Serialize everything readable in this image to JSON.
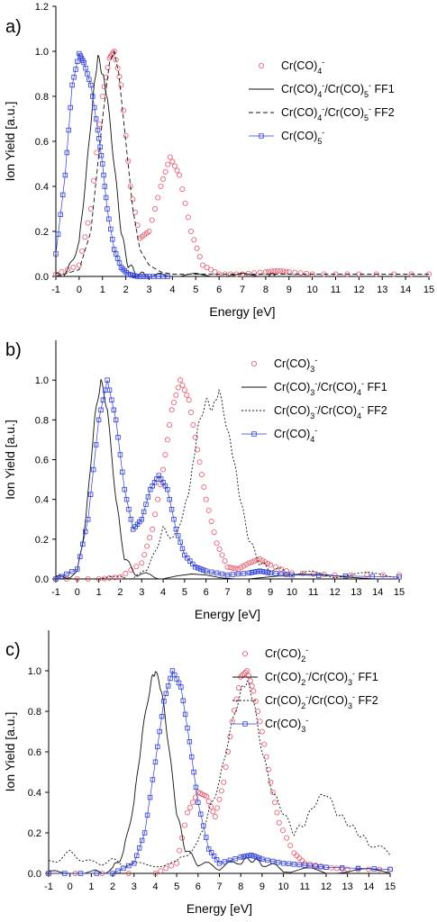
{
  "colors": {
    "red": "#e8556a",
    "blue": "#2b3bd8",
    "black": "#111111"
  },
  "chart_data": [
    {
      "type": "line",
      "panel_label": "a)",
      "xlabel": "Energy [eV]",
      "ylabel": "Ion Yield [a.u.]",
      "xlim": [
        -1,
        15
      ],
      "ylim": [
        0,
        1.2
      ],
      "xticks": [
        "-1",
        "0",
        "1",
        "2",
        "3",
        "4",
        "5",
        "6",
        "7",
        "8",
        "9",
        "10",
        "11",
        "12",
        "13",
        "14",
        "15"
      ],
      "yticks": [
        "0.0",
        "0.2",
        "0.4",
        "0.6",
        "0.8",
        "1.0",
        "1.2"
      ],
      "legend": [
        {
          "base": "Cr(CO)",
          "sub": "4",
          "sup": "-",
          "rest": "",
          "style": "circle-red"
        },
        {
          "base": "Cr(CO)",
          "sub": "4",
          "sup": "-",
          "mid": "/Cr(CO)",
          "sub2": "5",
          "sup2": "-",
          "rest": " FF1",
          "style": "solid-black"
        },
        {
          "base": "Cr(CO)",
          "sub": "4",
          "sup": "-",
          "mid": "/Cr(CO)",
          "sub2": "5",
          "sup2": "-",
          "rest": " FF2",
          "style": "dash-black"
        },
        {
          "base": "Cr(CO)",
          "sub": "5",
          "sup": "-",
          "rest": "",
          "style": "square-blue"
        }
      ],
      "series": [
        {
          "name": "Cr(CO)4-",
          "style": "circle-red",
          "x": [
            -1,
            0,
            0.5,
            1,
            1.3,
            1.5,
            1.8,
            2.2,
            2.6,
            3,
            3.5,
            3.9,
            4.3,
            4.8,
            5.3,
            6,
            7,
            8,
            8.5,
            9,
            10,
            12,
            15
          ],
          "y": [
            0.01,
            0.05,
            0.3,
            0.8,
            0.97,
            1.0,
            0.85,
            0.4,
            0.17,
            0.2,
            0.4,
            0.53,
            0.45,
            0.2,
            0.05,
            0.01,
            0.01,
            0.02,
            0.025,
            0.02,
            0.01,
            0.01,
            0.01
          ]
        },
        {
          "name": "FF1",
          "style": "solid-black",
          "x": [
            -1,
            -0.5,
            0,
            0.3,
            0.6,
            0.8,
            1,
            1.2,
            1.5,
            1.8,
            2.1,
            2.5,
            3,
            4,
            6,
            8,
            8.5
          ],
          "y": [
            0.0,
            0.02,
            0.15,
            0.45,
            0.8,
            0.98,
            0.9,
            0.8,
            0.5,
            0.2,
            0.05,
            0.01,
            0.0,
            0.0,
            0.0,
            0.0,
            0.0
          ]
        },
        {
          "name": "FF2",
          "style": "dash-black",
          "x": [
            -1,
            0,
            0.5,
            1,
            1.3,
            1.5,
            1.7,
            2,
            2.3,
            2.6,
            3,
            3.5,
            4,
            5,
            7,
            9,
            12,
            15
          ],
          "y": [
            0.0,
            0.03,
            0.2,
            0.7,
            0.95,
            1.0,
            0.9,
            0.6,
            0.3,
            0.12,
            0.05,
            0.02,
            0.01,
            0.01,
            0.01,
            0.01,
            0.01,
            0.01
          ]
        },
        {
          "name": "Cr(CO)5-",
          "style": "square-blue",
          "x": [
            -1,
            -0.6,
            -0.3,
            0,
            0.2,
            0.5,
            0.8,
            1,
            1.2,
            1.5,
            1.8,
            2.1,
            2.5,
            3,
            3.8
          ],
          "y": [
            0.1,
            0.45,
            0.85,
            0.99,
            0.95,
            0.85,
            0.65,
            0.5,
            0.3,
            0.12,
            0.04,
            0.01,
            0.0,
            0.0,
            0.0
          ]
        }
      ]
    },
    {
      "type": "line",
      "panel_label": "b)",
      "xlabel": "Energy [eV]",
      "ylabel": "Ion Yield [a.u.]",
      "xlim": [
        -1,
        15
      ],
      "ylim": [
        0,
        1.2
      ],
      "xticks": [
        "-1",
        "0",
        "1",
        "2",
        "3",
        "4",
        "5",
        "6",
        "7",
        "8",
        "9",
        "10",
        "11",
        "12",
        "13",
        "14",
        "15"
      ],
      "yticks": [
        "0.0",
        "0.2",
        "0.4",
        "0.6",
        "0.8",
        "1.0"
      ],
      "legend": [
        {
          "base": "Cr(CO)",
          "sub": "3",
          "sup": "-",
          "rest": "",
          "style": "circle-red"
        },
        {
          "base": "Cr(CO)",
          "sub": "3",
          "sup": "-",
          "mid": "/Cr(CO)",
          "sub2": "4",
          "sup2": "-",
          "rest": " FF1",
          "style": "solid-black"
        },
        {
          "base": "Cr(CO)",
          "sub": "3",
          "sup": "-",
          "mid": "/Cr(CO)",
          "sub2": "4",
          "sup2": "-",
          "rest": " FF2",
          "style": "dot-black"
        },
        {
          "base": "Cr(CO)",
          "sub": "4",
          "sup": "-",
          "rest": "",
          "style": "square-blue"
        }
      ],
      "series": [
        {
          "name": "Cr(CO)3-",
          "style": "circle-red",
          "x": [
            -1,
            1,
            2,
            3,
            3.5,
            4,
            4.4,
            4.8,
            5.2,
            5.6,
            6,
            6.5,
            7,
            7.5,
            8,
            8.5,
            9,
            10,
            12,
            15
          ],
          "y": [
            0.0,
            0.0,
            0.01,
            0.08,
            0.25,
            0.55,
            0.85,
            1.0,
            0.9,
            0.65,
            0.4,
            0.18,
            0.06,
            0.05,
            0.08,
            0.1,
            0.07,
            0.03,
            0.02,
            0.02
          ]
        },
        {
          "name": "FF1",
          "style": "solid-black",
          "x": [
            -1,
            0,
            0.4,
            0.8,
            1.1,
            1.4,
            1.8,
            2.2,
            2.8,
            4,
            8,
            15
          ],
          "y": [
            0.0,
            0.03,
            0.3,
            0.8,
            1.0,
            0.85,
            0.4,
            0.1,
            0.02,
            0.01,
            0.01,
            0.01
          ]
        },
        {
          "name": "FF2",
          "style": "dot-black",
          "x": [
            -1,
            2,
            3,
            3.5,
            4,
            4.5,
            5,
            5.3,
            5.6,
            6,
            6.3,
            6.6,
            7,
            7.3,
            7.6,
            8,
            8.5,
            9,
            10,
            12,
            15
          ],
          "y": [
            0.0,
            0.0,
            0.02,
            0.1,
            0.25,
            0.2,
            0.35,
            0.5,
            0.75,
            0.9,
            0.85,
            0.95,
            0.75,
            0.6,
            0.4,
            0.2,
            0.08,
            0.05,
            0.03,
            0.02,
            0.02
          ]
        },
        {
          "name": "Cr(CO)4-",
          "style": "square-blue",
          "x": [
            -1,
            0,
            0.5,
            1,
            1.4,
            1.8,
            2.2,
            2.6,
            3,
            3.4,
            3.8,
            4.2,
            4.6,
            5,
            5.5,
            6,
            7,
            8,
            8.5,
            9,
            10,
            15
          ],
          "y": [
            0.0,
            0.05,
            0.3,
            0.8,
            1.0,
            0.8,
            0.45,
            0.25,
            0.3,
            0.45,
            0.52,
            0.45,
            0.25,
            0.12,
            0.06,
            0.04,
            0.02,
            0.03,
            0.04,
            0.03,
            0.02,
            0.01
          ]
        }
      ]
    },
    {
      "type": "line",
      "panel_label": "c)",
      "xlabel": "Energy [eV]",
      "ylabel": "Ion Yield [a.u.]",
      "xlim": [
        -1,
        15
      ],
      "ylim": [
        0,
        1.2
      ],
      "xticks": [
        "-1",
        "0",
        "1",
        "2",
        "3",
        "4",
        "5",
        "6",
        "7",
        "8",
        "9",
        "10",
        "11",
        "12",
        "13",
        "14",
        "15"
      ],
      "yticks": [
        "0.0",
        "0.2",
        "0.4",
        "0.6",
        "0.8",
        "1.0"
      ],
      "legend": [
        {
          "base": "Cr(CO)",
          "sub": "2",
          "sup": "-",
          "rest": "",
          "style": "circle-red"
        },
        {
          "base": "Cr(CO)",
          "sub": "2",
          "sup": "-",
          "mid": "/Cr(CO)",
          "sub2": "3",
          "sup2": "-",
          "rest": " FF1",
          "style": "solid-black"
        },
        {
          "base": "Cr(CO)",
          "sub": "2",
          "sup": "-",
          "mid": "/Cr(CO)",
          "sub2": "3",
          "sup2": "-",
          "rest": " FF2",
          "style": "dot-black"
        },
        {
          "base": "Cr(CO)",
          "sub": "3",
          "sup": "-",
          "rest": "",
          "style": "square-blue"
        }
      ],
      "series": [
        {
          "name": "Cr(CO)2-",
          "style": "circle-red",
          "x": [
            -1,
            4,
            5,
            5.5,
            6,
            6.4,
            6.8,
            7.2,
            7.6,
            8,
            8.3,
            8.6,
            9,
            9.4,
            9.8,
            10.5,
            11,
            12,
            13,
            15
          ],
          "y": [
            0.0,
            0.0,
            0.05,
            0.3,
            0.4,
            0.38,
            0.28,
            0.45,
            0.75,
            0.97,
            1.0,
            0.9,
            0.7,
            0.45,
            0.25,
            0.1,
            0.05,
            0.03,
            0.02,
            0.02
          ]
        },
        {
          "name": "FF1",
          "style": "solid-black",
          "x": [
            -1,
            1,
            2,
            2.5,
            3,
            3.4,
            3.8,
            4,
            4.3,
            4.6,
            5,
            5.4,
            6,
            7,
            8,
            8.5,
            9,
            10,
            12,
            15
          ],
          "y": [
            0.0,
            0.0,
            0.02,
            0.1,
            0.35,
            0.7,
            0.95,
            1.0,
            0.9,
            0.65,
            0.3,
            0.12,
            0.05,
            0.03,
            0.06,
            0.07,
            0.05,
            0.02,
            0.01,
            0.01
          ]
        },
        {
          "name": "FF2",
          "style": "dot-black",
          "x": [
            -1,
            0,
            1,
            2,
            3,
            5,
            6,
            6.5,
            7,
            7.5,
            8,
            8.3,
            8.6,
            9,
            9.5,
            10,
            10.5,
            11,
            11.5,
            12,
            12.5,
            13,
            13.5,
            14,
            15
          ],
          "y": [
            0.05,
            0.1,
            0.05,
            0.06,
            0.04,
            0.05,
            0.15,
            0.3,
            0.45,
            0.7,
            0.9,
            0.95,
            0.85,
            0.6,
            0.4,
            0.3,
            0.2,
            0.25,
            0.35,
            0.4,
            0.3,
            0.25,
            0.2,
            0.15,
            0.1
          ]
        },
        {
          "name": "Cr(CO)3-",
          "style": "square-blue",
          "x": [
            -1,
            2,
            3,
            3.5,
            4,
            4.4,
            4.8,
            5.2,
            5.6,
            6,
            6.5,
            7,
            8,
            8.5,
            9,
            10,
            11,
            12,
            15
          ],
          "y": [
            0.0,
            0.0,
            0.05,
            0.2,
            0.55,
            0.85,
            1.0,
            0.92,
            0.65,
            0.35,
            0.12,
            0.05,
            0.08,
            0.09,
            0.07,
            0.05,
            0.04,
            0.03,
            0.02
          ]
        }
      ]
    }
  ]
}
